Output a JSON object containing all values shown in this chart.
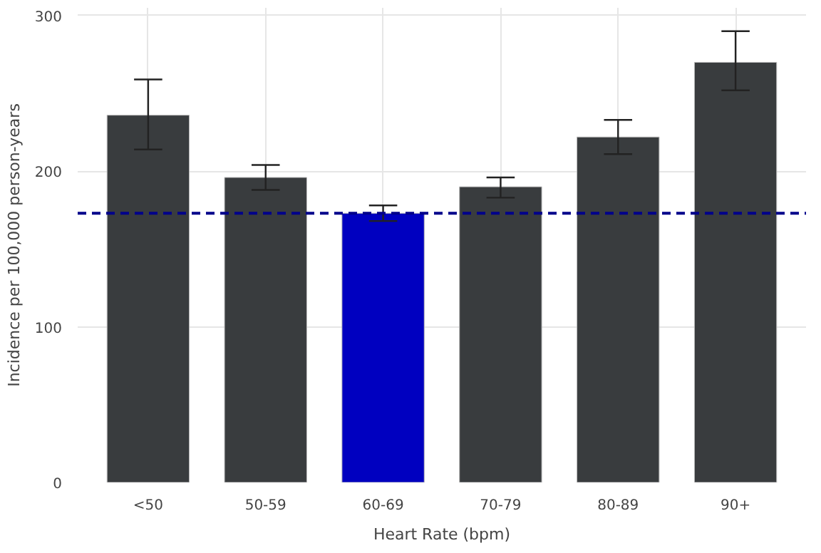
{
  "chart_data": {
    "type": "bar",
    "xlabel": "Heart Rate (bpm)",
    "ylabel": "Incidence per 100,000 person-years",
    "categories": [
      "<50",
      "50-59",
      "60-69",
      "70-79",
      "80-89",
      "90+"
    ],
    "values": [
      236,
      196,
      173,
      190,
      222,
      270
    ],
    "colors": [
      "#393c3e",
      "#393c3e",
      "#0000c0",
      "#393c3e",
      "#393c3e",
      "#393c3e"
    ],
    "errors": [
      [
        214,
        259
      ],
      [
        188,
        204
      ],
      [
        168,
        178
      ],
      [
        183,
        196
      ],
      [
        211,
        233
      ],
      [
        252,
        290
      ]
    ],
    "ylim": [
      0,
      305
    ],
    "yticks": [
      0,
      100,
      200,
      300
    ],
    "grid": true,
    "ref_lines": [
      {
        "axis": "y",
        "value": 173,
        "label": null,
        "color": "#00008b",
        "line_style": "dashed"
      }
    ]
  }
}
